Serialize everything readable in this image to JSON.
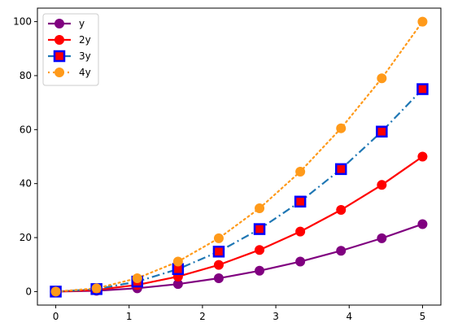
{
  "chart_data": {
    "type": "line",
    "title": "",
    "xlabel": "",
    "ylabel": "",
    "xlim": [
      -0.25,
      5.25
    ],
    "ylim": [
      -5,
      105
    ],
    "x_ticks": [
      0,
      1,
      2,
      3,
      4,
      5
    ],
    "y_ticks": [
      0,
      20,
      40,
      60,
      80,
      100
    ],
    "grid": false,
    "legend_position": "upper-left",
    "x": [
      0,
      0.5556,
      1.1111,
      1.6667,
      2.2222,
      2.7778,
      3.3333,
      3.8889,
      4.4444,
      5.0
    ],
    "series": [
      {
        "name": "y",
        "values": [
          0,
          0.31,
          1.23,
          2.78,
          4.94,
          7.72,
          11.11,
          15.12,
          19.75,
          25
        ],
        "color": "#800080",
        "line_style": "solid",
        "marker": "circle",
        "marker_face": "#800080",
        "marker_edge": "#800080"
      },
      {
        "name": "2y",
        "values": [
          0,
          0.62,
          2.47,
          5.56,
          9.88,
          15.43,
          22.22,
          30.25,
          39.51,
          50
        ],
        "color": "#ff0000",
        "line_style": "solid",
        "marker": "circle",
        "marker_face": "#ff0000",
        "marker_edge": "#ff0000"
      },
      {
        "name": "3y",
        "values": [
          0,
          0.93,
          3.7,
          8.33,
          14.81,
          23.15,
          33.33,
          45.37,
          59.26,
          75
        ],
        "color": "#1f77b4",
        "line_style": "dashdot",
        "marker": "square",
        "marker_face": "#ff0000",
        "marker_edge": "#0000ff"
      },
      {
        "name": "4y",
        "values": [
          0,
          1.23,
          4.94,
          11.11,
          19.75,
          30.86,
          44.44,
          60.49,
          79.01,
          100
        ],
        "color": "#ff9a1a",
        "line_style": "dotted",
        "marker": "circle",
        "marker_face": "#ff9a1a",
        "marker_edge": "#ff9a1a"
      }
    ]
  }
}
